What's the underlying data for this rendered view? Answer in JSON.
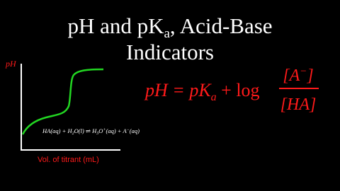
{
  "title": {
    "line1": [
      "pH and pK",
      "a",
      ", Acid-Base"
    ],
    "line2": "Indicators"
  },
  "graph": {
    "y_label": "pH",
    "x_label": "Vol. of titrant (mL)",
    "reaction": [
      "HA(aq) + H",
      "2",
      "O(l) ⇌ H",
      "3",
      "O",
      "+",
      "(aq) + A",
      "−",
      "(aq)"
    ]
  },
  "formula": {
    "lhs": [
      "pH = pK",
      "a",
      " + log"
    ],
    "numerator": [
      "[A",
      "−",
      "]"
    ],
    "denominator": "[HA]"
  }
}
